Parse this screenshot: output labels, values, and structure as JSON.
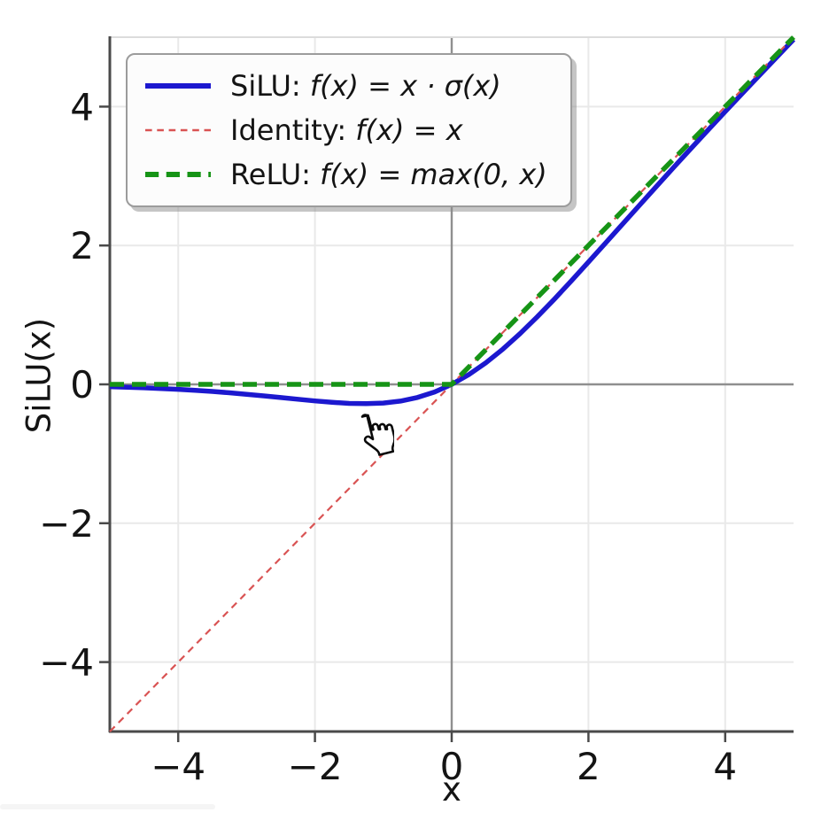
{
  "chart_data": {
    "type": "line",
    "title": "",
    "xlabel": "x",
    "ylabel": "SiLU(x)",
    "xlim": [
      -5,
      5
    ],
    "ylim": [
      -5,
      5
    ],
    "xticks": {
      "values": [
        -4,
        -2,
        0,
        2,
        4
      ],
      "labels": [
        "−4",
        "−2",
        "0",
        "2",
        "4"
      ]
    },
    "yticks": {
      "values": [
        -4,
        -2,
        0,
        2,
        4
      ],
      "labels": [
        "−4",
        "−2",
        "0",
        "2",
        "4"
      ]
    },
    "grid": true,
    "zero_lines": true,
    "legend_position": "upper-left",
    "series": [
      {
        "name": "SiLU",
        "legend_prefix": "SiLU: ",
        "legend_formula": "f(x) = x · σ(x)",
        "color": "#1c18cf",
        "line_style": "solid",
        "line_width": 5.5,
        "dash": null,
        "x": [
          -5,
          -4.75,
          -4.5,
          -4.25,
          -4,
          -3.75,
          -3.5,
          -3.25,
          -3,
          -2.75,
          -2.5,
          -2.25,
          -2,
          -1.75,
          -1.5,
          -1.25,
          -1,
          -0.75,
          -0.5,
          -0.25,
          0,
          0.25,
          0.5,
          0.75,
          1,
          1.25,
          1.5,
          1.75,
          2,
          2.25,
          2.5,
          2.75,
          3,
          3.25,
          3.5,
          3.75,
          4,
          4.25,
          4.5,
          4.75,
          5
        ],
        "y": [
          -0.0336,
          -0.0408,
          -0.0494,
          -0.0598,
          -0.0719,
          -0.0861,
          -0.1026,
          -0.1213,
          -0.1423,
          -0.1652,
          -0.1897,
          -0.2145,
          -0.2384,
          -0.2591,
          -0.2736,
          -0.2784,
          -0.2689,
          -0.2406,
          -0.1888,
          -0.1095,
          0,
          0.1405,
          0.3112,
          0.5094,
          0.7311,
          0.9716,
          1.2264,
          1.4909,
          1.7616,
          2.0355,
          2.3104,
          2.5848,
          2.8577,
          3.1287,
          3.3974,
          3.6638,
          3.928,
          4.1902,
          4.4506,
          4.7093,
          4.9665
        ]
      },
      {
        "name": "Identity",
        "legend_prefix": "Identity: ",
        "legend_formula": "f(x) = x",
        "color": "#d95353",
        "line_style": "dashed",
        "line_width": 2.2,
        "dash": [
          8,
          6
        ],
        "x": [
          -5,
          5
        ],
        "y": [
          -5,
          5
        ]
      },
      {
        "name": "ReLU",
        "legend_prefix": "ReLU: ",
        "legend_formula": "f(x) = max(0, x)",
        "color": "#169416",
        "line_style": "dashed",
        "line_width": 5.5,
        "dash": [
          16,
          9
        ],
        "x": [
          -5,
          0,
          5
        ],
        "y": [
          0,
          0,
          5
        ]
      }
    ],
    "cursor": {
      "type": "hand-pointer",
      "x": -1.3,
      "y": -0.6
    }
  },
  "colors": {
    "background": "#ffffff",
    "grid": "#e9e9e9",
    "zero_line": "#8f8f8f",
    "spine": "#4a4a4a",
    "top_spine": "#dcdcdc",
    "tick_label": "#141414"
  }
}
